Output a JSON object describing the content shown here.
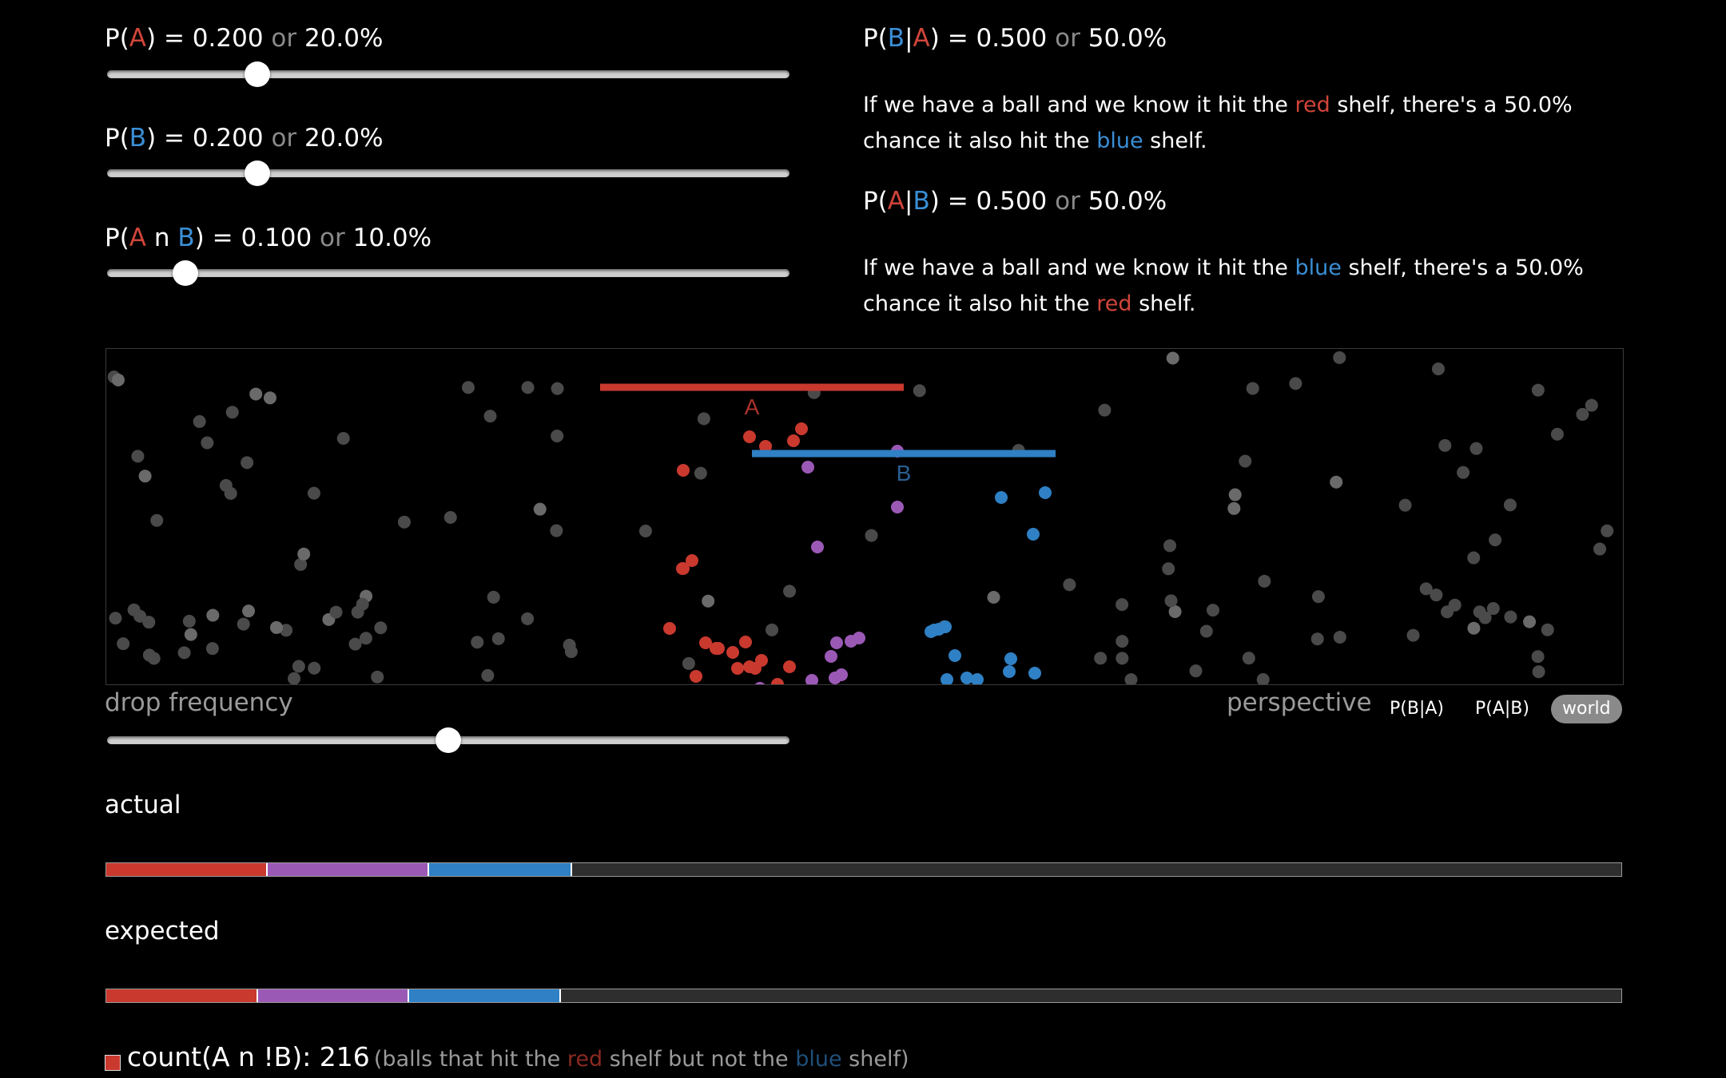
{
  "controls": {
    "pA": {
      "label_open": "P(",
      "event": "A",
      "label_close": ") = ",
      "value": "0.200",
      "or": "or",
      "percent": "20.0%",
      "fraction": 0.2
    },
    "pB": {
      "label_open": "P(",
      "event": "B",
      "label_close": ") = ",
      "value": "0.200",
      "or": "or",
      "percent": "20.0%",
      "fraction": 0.2
    },
    "pAB": {
      "label_open": "P(",
      "event_a": "A",
      "n": " n ",
      "event_b": "B",
      "label_close": ") = ",
      "value": "0.100",
      "or": "or",
      "percent": "10.0%",
      "fraction": 0.1
    },
    "drop_frequency": {
      "label": "drop frequency",
      "fraction": 0.5
    }
  },
  "conditionals": {
    "b_given_a": {
      "open": "P(",
      "b": "B",
      "sep": "|",
      "a": "A",
      "close": ") = ",
      "value": "0.500",
      "or": "or",
      "percent": "50.0%",
      "text1": "If we have a ball and we know it hit the ",
      "color1": "red",
      "text2": " shelf, there's a 50.0% chance it also hit the ",
      "color2": "blue",
      "text3": " shelf."
    },
    "a_given_b": {
      "open": "P(",
      "a": "A",
      "sep": "|",
      "b": "B",
      "close": ") = ",
      "value": "0.500",
      "or": "or",
      "percent": "50.0%",
      "text1": "If we have a ball and we know it hit the ",
      "color1": "blue",
      "text2": " shelf, there's a 50.0% chance it also hit the ",
      "color2": "red",
      "text3": " shelf."
    }
  },
  "shelves": {
    "a_label": "A",
    "b_label": "B",
    "a_color": "#c9392e",
    "b_color": "#2f80c4"
  },
  "perspective": {
    "label": "perspective",
    "options": [
      "P(B|A)",
      "P(A|B)",
      "world"
    ],
    "selected": "world"
  },
  "actual": {
    "label": "actual",
    "fractions": {
      "a_only": 0.1065,
      "both": 0.1065,
      "b_only": 0.0945
    }
  },
  "expected": {
    "label": "expected",
    "fractions": {
      "a_only": 0.1,
      "both": 0.1,
      "b_only": 0.1
    }
  },
  "colors": {
    "red": "#c9392e",
    "purple": "#9b59b6",
    "blue": "#2f80c4",
    "gray": "#2e2e2e"
  },
  "count": {
    "label": "count(A n !B): 216",
    "desc_open": "(balls that hit the ",
    "red_word": "red",
    "desc_mid": " shelf but not the ",
    "blue_word": "blue",
    "desc_close": " shelf)"
  }
}
